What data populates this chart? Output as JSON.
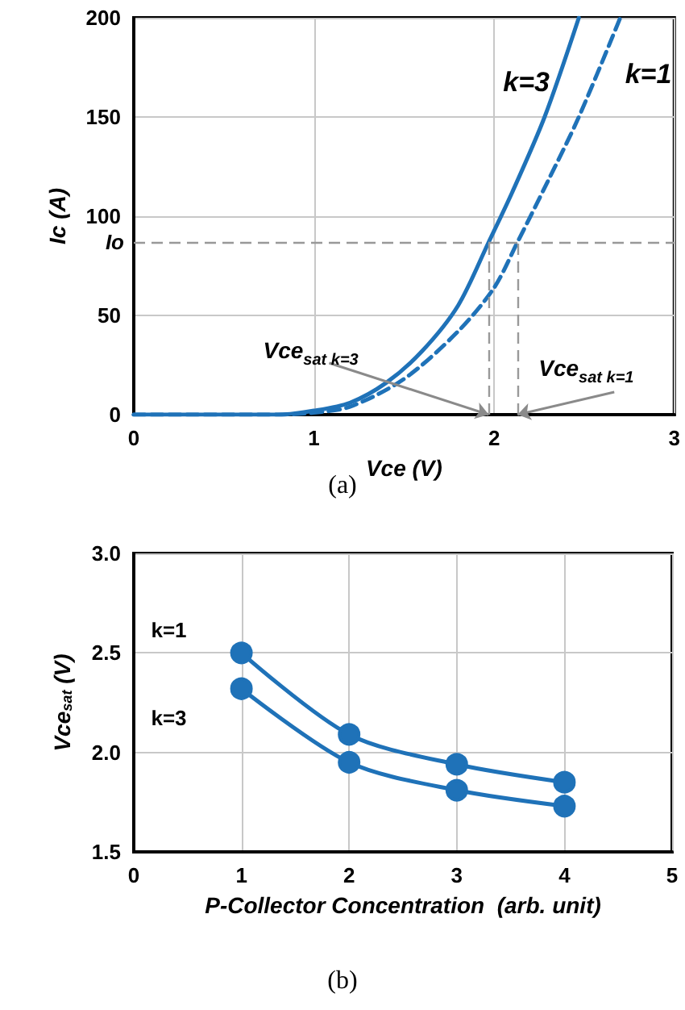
{
  "chart_data": [
    {
      "type": "line",
      "xlabel": "Vce (V)",
      "ylabel": "Ic (A)",
      "xlim": [
        0,
        3
      ],
      "xticks": [
        0,
        1,
        2,
        3
      ],
      "ylim": [
        0,
        200
      ],
      "yticks": [
        0,
        50,
        100,
        150,
        200
      ],
      "grid": true,
      "marker": "none",
      "series": [
        {
          "name": "k=3",
          "color": "#1f72b8",
          "line_style": "solid",
          "x": [
            0,
            0.8,
            1.0,
            1.2,
            1.4,
            1.6,
            1.8,
            1.97,
            2.1,
            2.28,
            2.47
          ],
          "values": [
            0,
            0,
            2,
            6,
            16,
            32,
            55,
            87,
            112,
            150,
            200
          ]
        },
        {
          "name": "k=1",
          "color": "#1f72b8",
          "line_style": "dashed",
          "x": [
            0,
            0.8,
            1.0,
            1.2,
            1.5,
            1.8,
            2.0,
            2.13,
            2.3,
            2.47,
            2.7
          ],
          "values": [
            0,
            0,
            1,
            4,
            18,
            42,
            64,
            87,
            118,
            150,
            200
          ]
        }
      ],
      "ref_lines": [
        {
          "axis": "y",
          "value": 87,
          "label": "Io",
          "color": "#999999",
          "line_style": "dashed"
        },
        {
          "axis": "x",
          "value": 1.97,
          "color": "#999999",
          "line_style": "dashed"
        },
        {
          "axis": "x",
          "value": 2.13,
          "color": "#999999",
          "line_style": "dashed"
        }
      ],
      "annotations": [
        {
          "text": "Vce$_{sat k=3}$",
          "x": 1.97,
          "y": 0
        },
        {
          "text": "Vce$_{sat k=1}$",
          "x": 2.13,
          "y": 0
        },
        "(a)"
      ]
    },
    {
      "type": "line",
      "xlabel": "P-Collector Concentration  (arb. unit)",
      "ylabel": "Vce$_{sat}$ (V)",
      "xlim": [
        0,
        5
      ],
      "xticks": [
        0,
        1,
        2,
        3,
        4,
        5
      ],
      "ylim": [
        1.5,
        3.0
      ],
      "yticks": [
        {
          "value": 1.5,
          "label": "1.5"
        },
        {
          "value": 2.0,
          "label": "2.0"
        },
        {
          "value": 2.5,
          "label": "2.5"
        },
        {
          "value": 3.0,
          "label": "3.0"
        }
      ],
      "grid": true,
      "marker": "circle",
      "series": [
        {
          "name": "k=1",
          "color": "#1f72b8",
          "x": [
            1,
            2,
            3,
            4
          ],
          "values": [
            2.5,
            2.09,
            1.94,
            1.85
          ]
        },
        {
          "name": "k=3",
          "color": "#1f72b8",
          "x": [
            1,
            2,
            3,
            4
          ],
          "values": [
            2.32,
            1.95,
            1.81,
            1.73
          ]
        }
      ],
      "annotations": [
        "(b)"
      ]
    }
  ]
}
